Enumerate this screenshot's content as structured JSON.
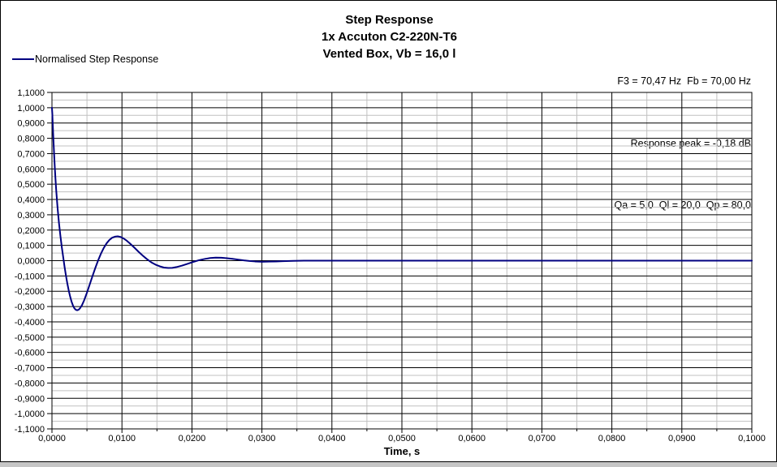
{
  "window": {
    "background": "#ffffff",
    "frame_border_color": "#000000",
    "bottom_strip_color": "#c6c6c6"
  },
  "chart_data": {
    "type": "line",
    "title": "Step Response",
    "title_lines": [
      "Step Response",
      "1x Accuton C2-220N-T6",
      "Vented Box, Vb = 16,0 l"
    ],
    "annotations": [
      "F3 = 70,47 Hz  Fb = 70,00 Hz",
      "Response peak = -0,18 dB",
      "Qa = 5,0  Ql = 20,0  Qp = 80,0"
    ],
    "xlabel": "Time, s",
    "ylabel": "",
    "xlim": [
      0,
      0.1
    ],
    "ylim": [
      -1.1,
      1.1
    ],
    "x_major_step": 0.01,
    "x_minor_step": 0.005,
    "y_major_step": 0.1,
    "y_minor_step": 0.05,
    "x_tick_labels": [
      "0,0000",
      "0,0100",
      "0,0200",
      "0,0300",
      "0,0400",
      "0,0500",
      "0,0600",
      "0,0700",
      "0,0800",
      "0,0900",
      "0,1000"
    ],
    "y_tick_labels": [
      "1,1000",
      "1,0000",
      "0,9000",
      "0,8000",
      "0,7000",
      "0,6000",
      "0,5000",
      "0,4000",
      "0,3000",
      "0,2000",
      "0,1000",
      "0,0000",
      "-0,1000",
      "-0,2000",
      "-0,3000",
      "-0,4000",
      "-0,5000",
      "-0,6000",
      "-0,7000",
      "-0,8000",
      "-0,9000",
      "-1,0000",
      "-1,1000"
    ],
    "grid": {
      "major_color": "#000000",
      "minor_color": "#c0c0c0",
      "grid_on": true
    },
    "legend_position": "top-left",
    "series": [
      {
        "name": "Normalised Step Response",
        "color": "#000080",
        "points": [
          [
            0.0,
            1.0
          ],
          [
            5e-05,
            0.962
          ],
          [
            0.0001,
            0.905
          ],
          [
            0.0002,
            0.8
          ],
          [
            0.0003,
            0.703
          ],
          [
            0.0004,
            0.615
          ],
          [
            0.0005,
            0.536
          ],
          [
            0.0006,
            0.465
          ],
          [
            0.0008,
            0.345
          ],
          [
            0.001,
            0.247
          ],
          [
            0.0012,
            0.165
          ],
          [
            0.0014,
            0.09
          ],
          [
            0.0016,
            0.025
          ],
          [
            0.0018,
            -0.04
          ],
          [
            0.002,
            -0.098
          ],
          [
            0.0022,
            -0.15
          ],
          [
            0.0024,
            -0.196
          ],
          [
            0.0026,
            -0.235
          ],
          [
            0.0028,
            -0.268
          ],
          [
            0.003,
            -0.293
          ],
          [
            0.0032,
            -0.311
          ],
          [
            0.0034,
            -0.321
          ],
          [
            0.0036,
            -0.324
          ],
          [
            0.0038,
            -0.321
          ],
          [
            0.004,
            -0.312
          ],
          [
            0.0043,
            -0.29
          ],
          [
            0.0046,
            -0.259
          ],
          [
            0.005,
            -0.209
          ],
          [
            0.0054,
            -0.155
          ],
          [
            0.0058,
            -0.1
          ],
          [
            0.0062,
            -0.047
          ],
          [
            0.0066,
            0.002
          ],
          [
            0.007,
            0.046
          ],
          [
            0.0074,
            0.083
          ],
          [
            0.0078,
            0.113
          ],
          [
            0.0082,
            0.135
          ],
          [
            0.0086,
            0.15
          ],
          [
            0.009,
            0.157
          ],
          [
            0.0094,
            0.159
          ],
          [
            0.0098,
            0.155
          ],
          [
            0.0102,
            0.146
          ],
          [
            0.0107,
            0.13
          ],
          [
            0.0112,
            0.11
          ],
          [
            0.0118,
            0.084
          ],
          [
            0.0124,
            0.057
          ],
          [
            0.013,
            0.032
          ],
          [
            0.0136,
            0.009
          ],
          [
            0.0142,
            -0.011
          ],
          [
            0.0148,
            -0.026
          ],
          [
            0.0154,
            -0.037
          ],
          [
            0.016,
            -0.045
          ],
          [
            0.0166,
            -0.048
          ],
          [
            0.0172,
            -0.047
          ],
          [
            0.0178,
            -0.042
          ],
          [
            0.0186,
            -0.032
          ],
          [
            0.0194,
            -0.02
          ],
          [
            0.0202,
            -0.008
          ],
          [
            0.021,
            0.003
          ],
          [
            0.0218,
            0.011
          ],
          [
            0.0226,
            0.017
          ],
          [
            0.0234,
            0.02
          ],
          [
            0.0242,
            0.019
          ],
          [
            0.025,
            0.016
          ],
          [
            0.0258,
            0.012
          ],
          [
            0.0266,
            0.007
          ],
          [
            0.0274,
            0.002
          ],
          [
            0.0282,
            -0.002
          ],
          [
            0.029,
            -0.005
          ],
          [
            0.03,
            -0.007
          ],
          [
            0.031,
            -0.006
          ],
          [
            0.032,
            -0.005
          ],
          [
            0.033,
            -0.003
          ],
          [
            0.0345,
            -0.001
          ],
          [
            0.036,
            0.0
          ],
          [
            0.04,
            0.0
          ],
          [
            0.05,
            0.0
          ],
          [
            0.06,
            0.0
          ],
          [
            0.07,
            0.0
          ],
          [
            0.08,
            0.0
          ],
          [
            0.09,
            0.0
          ],
          [
            0.1,
            0.0
          ]
        ]
      }
    ]
  }
}
